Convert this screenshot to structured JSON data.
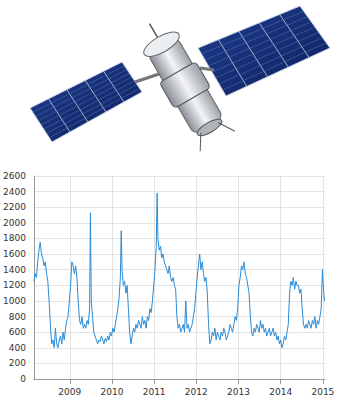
{
  "chart_data": {
    "type": "line",
    "color": "#2a8bd6",
    "grid": true,
    "xlim": [
      2008.15,
      2015.05
    ],
    "xticks": [
      2009,
      2010,
      2011,
      2012,
      2013,
      2014,
      2015
    ],
    "ylim": [
      0,
      2600
    ],
    "yticks": [
      0,
      200,
      400,
      600,
      800,
      1000,
      1200,
      1400,
      1600,
      1800,
      2000,
      2200,
      2400,
      2600
    ],
    "x": [
      2008.15,
      2008.18,
      2008.21,
      2008.24,
      2008.27,
      2008.3,
      2008.33,
      2008.36,
      2008.39,
      2008.42,
      2008.45,
      2008.48,
      2008.51,
      2008.54,
      2008.57,
      2008.6,
      2008.63,
      2008.66,
      2008.69,
      2008.72,
      2008.75,
      2008.78,
      2008.81,
      2008.84,
      2008.87,
      2008.9,
      2008.93,
      2008.96,
      2008.99,
      2009.02,
      2009.05,
      2009.08,
      2009.11,
      2009.14,
      2009.17,
      2009.2,
      2009.23,
      2009.26,
      2009.29,
      2009.32,
      2009.35,
      2009.38,
      2009.41,
      2009.44,
      2009.47,
      2009.49,
      2009.51,
      2009.54,
      2009.57,
      2009.6,
      2009.63,
      2009.66,
      2009.69,
      2009.72,
      2009.75,
      2009.78,
      2009.81,
      2009.84,
      2009.87,
      2009.9,
      2009.93,
      2009.96,
      2009.99,
      2010.02,
      2010.05,
      2010.08,
      2010.11,
      2010.14,
      2010.17,
      2010.2,
      2010.22,
      2010.24,
      2010.27,
      2010.3,
      2010.33,
      2010.36,
      2010.39,
      2010.42,
      2010.45,
      2010.48,
      2010.51,
      2010.54,
      2010.57,
      2010.6,
      2010.63,
      2010.66,
      2010.69,
      2010.72,
      2010.75,
      2010.78,
      2010.81,
      2010.84,
      2010.87,
      2010.9,
      2010.93,
      2010.96,
      2010.99,
      2011.02,
      2011.05,
      2011.07,
      2011.09,
      2011.12,
      2011.15,
      2011.18,
      2011.21,
      2011.24,
      2011.27,
      2011.3,
      2011.33,
      2011.36,
      2011.39,
      2011.42,
      2011.45,
      2011.48,
      2011.51,
      2011.54,
      2011.57,
      2011.6,
      2011.63,
      2011.66,
      2011.69,
      2011.72,
      2011.75,
      2011.78,
      2011.81,
      2011.84,
      2011.87,
      2011.9,
      2011.93,
      2011.96,
      2011.99,
      2012.02,
      2012.05,
      2012.08,
      2012.11,
      2012.14,
      2012.17,
      2012.2,
      2012.23,
      2012.26,
      2012.29,
      2012.32,
      2012.35,
      2012.38,
      2012.41,
      2012.44,
      2012.47,
      2012.5,
      2012.53,
      2012.56,
      2012.59,
      2012.62,
      2012.65,
      2012.68,
      2012.71,
      2012.74,
      2012.77,
      2012.8,
      2012.83,
      2012.86,
      2012.89,
      2012.92,
      2012.95,
      2012.98,
      2013.01,
      2013.04,
      2013.07,
      2013.1,
      2013.13,
      2013.16,
      2013.19,
      2013.22,
      2013.25,
      2013.28,
      2013.31,
      2013.34,
      2013.37,
      2013.4,
      2013.43,
      2013.46,
      2013.49,
      2013.52,
      2013.55,
      2013.58,
      2013.61,
      2013.64,
      2013.67,
      2013.7,
      2013.73,
      2013.76,
      2013.79,
      2013.82,
      2013.85,
      2013.88,
      2013.91,
      2013.94,
      2013.97,
      2014.0,
      2014.03,
      2014.06,
      2014.09,
      2014.12,
      2014.15,
      2014.18,
      2014.21,
      2014.24,
      2014.27,
      2014.3,
      2014.33,
      2014.36,
      2014.39,
      2014.42,
      2014.45,
      2014.48,
      2014.51,
      2014.54,
      2014.57,
      2014.6,
      2014.63,
      2014.66,
      2014.69,
      2014.72,
      2014.75,
      2014.78,
      2014.81,
      2014.84,
      2014.87,
      2014.9,
      2014.93,
      2014.96,
      2014.99,
      2015.02,
      2015.04
    ],
    "values": [
      1250,
      1350,
      1300,
      1500,
      1650,
      1750,
      1600,
      1550,
      1450,
      1500,
      1350,
      1250,
      1000,
      700,
      450,
      500,
      400,
      650,
      450,
      400,
      500,
      550,
      450,
      600,
      500,
      650,
      750,
      800,
      1000,
      1200,
      1500,
      1450,
      1350,
      1450,
      1300,
      1000,
      750,
      700,
      800,
      650,
      700,
      650,
      750,
      700,
      900,
      2130,
      1000,
      800,
      600,
      550,
      500,
      450,
      500,
      480,
      550,
      500,
      450,
      520,
      480,
      550,
      500,
      600,
      550,
      650,
      600,
      700,
      800,
      900,
      1050,
      1300,
      1900,
      1400,
      1200,
      1250,
      1100,
      1200,
      900,
      600,
      450,
      550,
      650,
      600,
      700,
      650,
      750,
      700,
      650,
      800,
      700,
      750,
      650,
      800,
      750,
      900,
      850,
      1000,
      1200,
      1400,
      1700,
      2380,
      1800,
      1650,
      1700,
      1550,
      1600,
      1500,
      1450,
      1400,
      1350,
      1450,
      1300,
      1250,
      1300,
      1200,
      1150,
      800,
      650,
      700,
      600,
      650,
      700,
      600,
      1000,
      650,
      700,
      600,
      650,
      700,
      800,
      900,
      1100,
      1300,
      1450,
      1600,
      1400,
      1500,
      1350,
      1250,
      1300,
      1100,
      700,
      450,
      500,
      600,
      550,
      650,
      500,
      600,
      550,
      500,
      600,
      550,
      650,
      600,
      500,
      550,
      600,
      700,
      650,
      600,
      700,
      800,
      750,
      900,
      1200,
      1300,
      1450,
      1400,
      1500,
      1350,
      1300,
      1200,
      1100,
      800,
      600,
      550,
      650,
      600,
      700,
      650,
      600,
      750,
      650,
      700,
      600,
      650,
      550,
      600,
      650,
      550,
      600,
      650,
      550,
      600,
      500,
      550,
      450,
      500,
      400,
      450,
      550,
      500,
      600,
      700,
      1100,
      1250,
      1200,
      1300,
      1150,
      1250,
      1200,
      1200,
      1100,
      1150,
      900,
      700,
      650,
      700,
      650,
      750,
      700,
      650,
      750,
      700,
      800,
      650,
      750,
      700,
      800,
      900,
      1400,
      1100,
      1000
    ]
  }
}
